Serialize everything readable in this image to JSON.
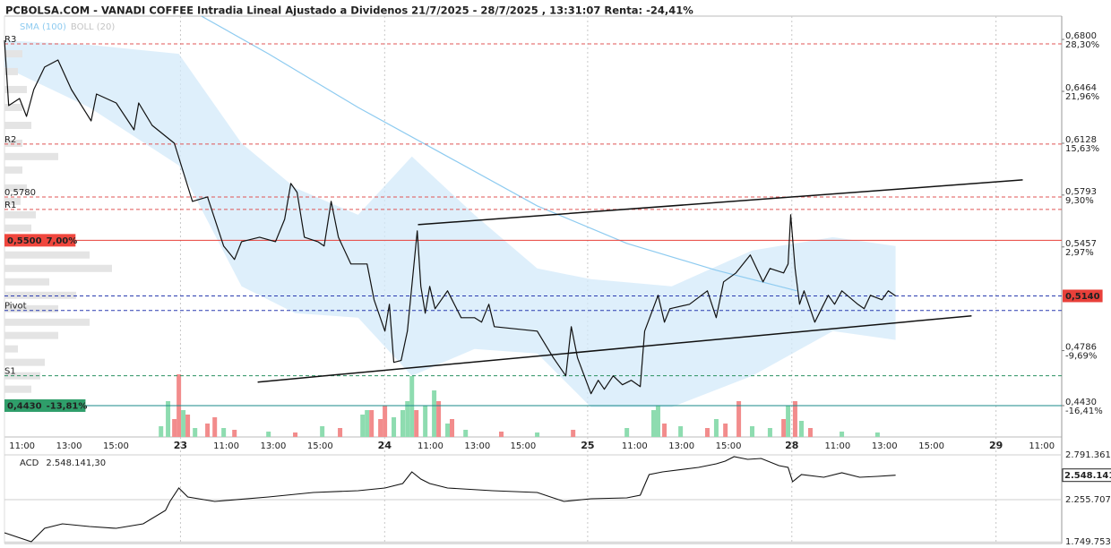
{
  "title": "PCBOLSA.COM - VANADI COFFEE Intradia Lineal Ajustado a Dividenos 21/7/2025 - 28/7/2025 , 13:31:07 Renta: -24,41%",
  "chart_data": [
    {
      "type": "line",
      "legend": [
        {
          "name": "SMA (100)",
          "color": "#8ecbf0"
        },
        {
          "name": "BOLL (20)",
          "color": "#c4c4c4"
        }
      ],
      "xlim": [
        -0.75,
        44.3
      ],
      "xticks": [
        {
          "value": 0,
          "label": "11:00"
        },
        {
          "value": 2,
          "label": "13:00"
        },
        {
          "value": 4,
          "label": "15:00"
        },
        {
          "value": 6.75,
          "label": "23"
        },
        {
          "value": 8.7,
          "label": "11:00"
        },
        {
          "value": 10.7,
          "label": "13:00"
        },
        {
          "value": 12.7,
          "label": "15:00"
        },
        {
          "value": 15.45,
          "label": "24"
        },
        {
          "value": 17.4,
          "label": "11:00"
        },
        {
          "value": 19.4,
          "label": "13:00"
        },
        {
          "value": 21.35,
          "label": "15:00"
        },
        {
          "value": 24.1,
          "label": "25"
        },
        {
          "value": 26.1,
          "label": "11:00"
        },
        {
          "value": 28.1,
          "label": "13:00"
        },
        {
          "value": 30.1,
          "label": "15:00"
        },
        {
          "value": 32.8,
          "label": "28"
        },
        {
          "value": 34.75,
          "label": "11:00"
        },
        {
          "value": 36.75,
          "label": "13:00"
        },
        {
          "value": 38.75,
          "label": "15:00"
        },
        {
          "value": 41.5,
          "label": "29"
        },
        {
          "value": 43.45,
          "label": "11:00"
        }
      ],
      "ylim": [
        0.4227,
        0.6951
      ],
      "yticks": [
        {
          "value": 0.68,
          "label": "0,6800"
        },
        {
          "value": 0.6464,
          "label": "0,6464"
        },
        {
          "value": 0.6128,
          "label": "0,6128"
        },
        {
          "value": 0.5793,
          "label": "0,5793"
        },
        {
          "value": 0.5457,
          "label": "0,5457"
        },
        {
          "value": 0.4786,
          "label": "0,4786"
        },
        {
          "value": 0.443,
          "label": "0,4430"
        }
      ],
      "ytick_pct": [
        "28,30%",
        "21,96%",
        "15,63%",
        "9,30%",
        "2,97%",
        "-9,69%",
        "-16,41%"
      ],
      "price": {
        "color": "#111111",
        "x": [
          -0.75,
          -0.57,
          -0.11,
          0.19,
          0.5,
          0.96,
          1.53,
          2.1,
          2.94,
          3.17,
          4.01,
          4.77,
          4.97,
          5.54,
          6.49,
          7.26,
          7.9,
          8.59,
          9.05,
          9.35,
          10.12,
          10.8,
          11.19,
          11.45,
          11.72,
          12.03,
          12.6,
          12.87,
          13.17,
          13.48,
          14.01,
          14.7,
          15.0,
          15.46,
          15.65,
          15.84,
          16.15,
          16.42,
          16.84,
          16.99,
          17.18,
          17.37,
          17.6,
          18.13,
          18.71,
          19.28,
          19.58,
          19.89,
          20.12,
          21.95,
          22.64,
          23.17,
          23.4,
          23.67,
          24.24,
          24.55,
          24.81,
          25.19,
          25.58,
          25.96,
          26.34,
          26.53,
          27.1,
          27.37,
          27.6,
          28.44,
          29.2,
          29.58,
          29.89,
          30.42,
          31.03,
          31.57,
          31.87,
          32.45,
          32.64,
          32.75,
          32.94,
          33.13,
          33.32,
          33.78,
          34.35,
          34.62,
          34.93,
          35.61,
          35.88,
          36.15,
          36.64,
          36.91,
          37.22
        ],
        "values": [
          0.6794,
          0.6372,
          0.6418,
          0.6302,
          0.6476,
          0.6621,
          0.6667,
          0.6476,
          0.6273,
          0.6447,
          0.6389,
          0.6215,
          0.6389,
          0.6244,
          0.6128,
          0.5752,
          0.5781,
          0.5463,
          0.5376,
          0.5491,
          0.552,
          0.5491,
          0.5636,
          0.5868,
          0.581,
          0.552,
          0.5491,
          0.5463,
          0.5752,
          0.552,
          0.5347,
          0.5347,
          0.5115,
          0.4912,
          0.5086,
          0.471,
          0.4722,
          0.4912,
          0.5561,
          0.5202,
          0.5028,
          0.5202,
          0.5057,
          0.5173,
          0.4999,
          0.4999,
          0.497,
          0.5086,
          0.4941,
          0.4912,
          0.4739,
          0.4623,
          0.4941,
          0.4739,
          0.4507,
          0.4594,
          0.4536,
          0.4623,
          0.4565,
          0.4594,
          0.4553,
          0.4912,
          0.5144,
          0.497,
          0.5057,
          0.5086,
          0.5173,
          0.4999,
          0.5231,
          0.5289,
          0.5405,
          0.5231,
          0.5318,
          0.5289,
          0.5347,
          0.5665,
          0.5318,
          0.5086,
          0.5173,
          0.497,
          0.5144,
          0.5086,
          0.5173,
          0.5086,
          0.5057,
          0.5144,
          0.5115,
          0.5173,
          0.514
        ]
      },
      "sma": {
        "color": "#8ecbf0",
        "x": [
          7.64,
          10.5,
          14.32,
          18.13,
          21.95,
          25.77,
          29.58,
          33.02
        ],
        "values": [
          0.6951,
          0.6707,
          0.636,
          0.6042,
          0.5723,
          0.548,
          0.5306,
          0.5173
        ]
      },
      "boll": {
        "color": "#d3eafa",
        "x": [
          -0.75,
          2.87,
          6.68,
          9.35,
          11.64,
          14.32,
          16.61,
          19.28,
          21.95,
          24.24,
          27.68,
          31.11,
          34.55,
          37.22
        ],
        "upper": [
          0.6794,
          0.6765,
          0.6707,
          0.6128,
          0.5839,
          0.5665,
          0.6042,
          0.5665,
          0.5318,
          0.5248,
          0.5202,
          0.5434,
          0.552,
          0.5463
        ],
        "lower": [
          0.6621,
          0.636,
          0.5984,
          0.5202,
          0.5028,
          0.4999,
          0.4623,
          0.4797,
          0.4768,
          0.442,
          0.442,
          0.4623,
          0.4912,
          0.4855
        ]
      },
      "trendlines": [
        {
          "x": [
            10.04,
            40.46
          ],
          "values": [
            0.4582,
            0.5011
          ]
        },
        {
          "x": [
            16.87,
            42.64
          ],
          "values": [
            0.5601,
            0.5891
          ]
        }
      ],
      "levels": [
        {
          "label": "R3",
          "value": 0.6771,
          "color": "#e05555",
          "dash": true
        },
        {
          "label": "R2",
          "value": 0.6123,
          "color": "#e05555",
          "dash": true
        },
        {
          "label": "0,5780",
          "value": 0.578,
          "color": "#e05555",
          "dash": true,
          "label_color": "#222222"
        },
        {
          "label": "R1",
          "value": 0.57,
          "color": "#e05555",
          "dash": true
        },
        {
          "label": "0,5500",
          "pct": "7,00%",
          "value": 0.55,
          "color": "#e8403a",
          "dash": false,
          "box": "#f0473e"
        },
        {
          "label": "0,5140",
          "value": 0.514,
          "color": "#2a3bb0",
          "dash": true,
          "box": "#e8403a",
          "side": "right"
        },
        {
          "label": "Pivot",
          "value": 0.5046,
          "color": "#2a3bb0",
          "dash": true,
          "label_color": "#1a6fd0"
        },
        {
          "label": "S1",
          "value": 0.4623,
          "color": "#2a9060",
          "dash": true
        },
        {
          "label": "0,4430",
          "pct": "-13,81%",
          "value": 0.443,
          "color": "#1a8a8a",
          "dash": false,
          "box": "#2f9e6a"
        }
      ],
      "volume": {
        "x": [
          5.92,
          6.22,
          6.49,
          6.68,
          6.87,
          7.06,
          7.37,
          7.9,
          8.21,
          8.59,
          9.05,
          10.5,
          11.64,
          12.79,
          13.55,
          14.51,
          14.7,
          14.89,
          15.27,
          15.46,
          15.84,
          16.22,
          16.42,
          16.61,
          16.8,
          17.18,
          17.56,
          17.75,
          18.13,
          18.32,
          18.9,
          20.42,
          21.95,
          23.48,
          25.77,
          26.91,
          27.1,
          27.37,
          28.06,
          29.2,
          29.58,
          29.97,
          30.54,
          31.11,
          31.87,
          32.45,
          32.64,
          32.94,
          33.21,
          33.59,
          34.93,
          36.45
        ],
        "values": [
          12,
          40,
          20,
          70,
          30,
          25,
          10,
          15,
          22,
          10,
          8,
          6,
          5,
          12,
          10,
          25,
          30,
          30,
          20,
          35,
          22,
          30,
          40,
          68,
          30,
          35,
          52,
          40,
          15,
          20,
          8,
          6,
          5,
          8,
          10,
          30,
          35,
          15,
          12,
          10,
          20,
          15,
          40,
          12,
          10,
          20,
          35,
          40,
          18,
          10,
          6,
          5
        ],
        "colors": [
          "#8edcb0",
          "#8edcb0",
          "#f28c8c",
          "#f28c8c",
          "#8edcb0",
          "#f28c8c",
          "#8edcb0",
          "#f28c8c",
          "#f28c8c",
          "#8edcb0",
          "#f28c8c",
          "#8edcb0",
          "#f28c8c",
          "#8edcb0",
          "#f28c8c",
          "#8edcb0",
          "#8edcb0",
          "#f28c8c",
          "#f28c8c",
          "#f28c8c",
          "#8edcb0",
          "#8edcb0",
          "#8edcb0",
          "#8edcb0",
          "#f28c8c",
          "#8edcb0",
          "#8edcb0",
          "#f28c8c",
          "#8edcb0",
          "#f28c8c",
          "#8edcb0",
          "#f28c8c",
          "#8edcb0",
          "#f28c8c",
          "#8edcb0",
          "#8edcb0",
          "#8edcb0",
          "#f28c8c",
          "#8edcb0",
          "#f28c8c",
          "#8edcb0",
          "#f28c8c",
          "#f28c8c",
          "#8edcb0",
          "#8edcb0",
          "#f28c8c",
          "#8edcb0",
          "#f28c8c",
          "#8edcb0",
          "#f28c8c",
          "#8edcb0",
          "#8edcb0"
        ]
      },
      "profile": {
        "color": "#e4e4e4",
        "levels": [
          0.6707,
          0.6592,
          0.6476,
          0.636,
          0.6244,
          0.6128,
          0.6042,
          0.5955,
          0.5839,
          0.5752,
          0.5665,
          0.5579,
          0.5491,
          0.5405,
          0.5318,
          0.5231,
          0.5144,
          0.5057,
          0.497,
          0.4884,
          0.4797,
          0.471,
          0.4623,
          0.4536
        ],
        "values": [
          20,
          15,
          25,
          20,
          30,
          20,
          60,
          20,
          25,
          18,
          35,
          30,
          25,
          95,
          120,
          50,
          80,
          60,
          95,
          60,
          15,
          45,
          40,
          30
        ]
      }
    },
    {
      "type": "line",
      "label": "ACD",
      "current": {
        "value": 2548141.3,
        "label": "2.548.141,30"
      },
      "color": "#111111",
      "ylim": [
        1730770,
        2791361
      ],
      "yticks": [
        {
          "value": 2791361,
          "label": "2.791.361"
        },
        {
          "value": 2255707,
          "label": "2.255.707"
        },
        {
          "value": 1749753,
          "label": "1.749.753"
        }
      ],
      "x": [
        -0.75,
        0.39,
        0.96,
        1.72,
        2.87,
        4.01,
        5.16,
        6.11,
        6.3,
        6.68,
        7.06,
        8.21,
        10.5,
        12.41,
        14.32,
        15.46,
        16.22,
        16.61,
        16.99,
        17.37,
        18.13,
        20.04,
        21.95,
        23.09,
        24.24,
        25.77,
        26.34,
        26.72,
        27.29,
        28.82,
        29.58,
        29.96,
        30.34,
        30.92,
        31.49,
        32.25,
        32.64,
        32.83,
        33.21,
        34.16,
        34.93,
        35.69,
        36.45,
        37.22
      ],
      "values": [
        1859326,
        1752196,
        1912891,
        1966456,
        1934317,
        1912891,
        1966456,
        2127151,
        2234281,
        2394976,
        2287846,
        2234281,
        2287846,
        2341411,
        2362837,
        2394976,
        2448541,
        2587810,
        2502106,
        2448541,
        2394976,
        2362837,
        2341411,
        2234281,
        2266420,
        2277133,
        2309272,
        2555671,
        2587810,
        2641375,
        2684227,
        2716366,
        2769931,
        2737792,
        2748505,
        2662801,
        2641375,
        2469967,
        2555671,
        2523532,
        2577097,
        2523532,
        2534245,
        2548141.3
      ]
    }
  ]
}
